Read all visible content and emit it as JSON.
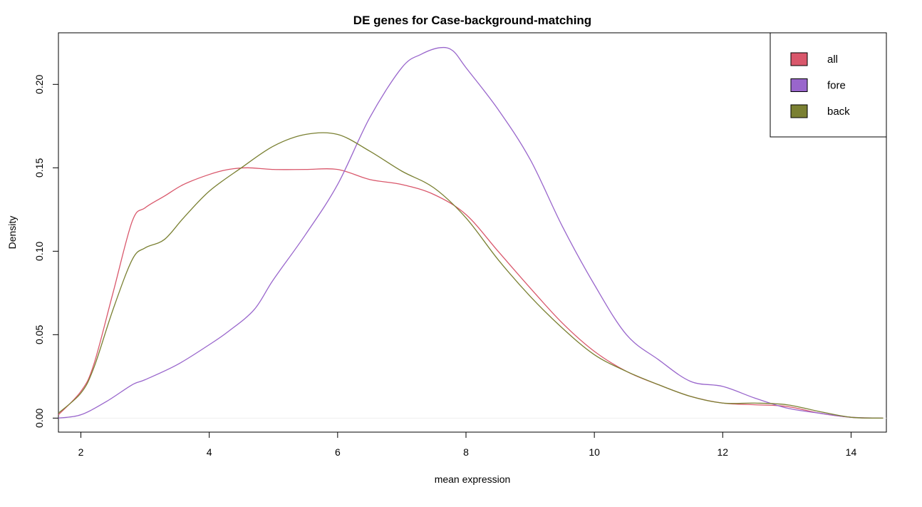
{
  "chart_data": {
    "type": "line",
    "title": "DE genes for Case-background-matching",
    "xlabel": "mean expression",
    "ylabel": "Density",
    "xlim": [
      1.65,
      14.55
    ],
    "ylim": [
      -0.0084,
      0.2309
    ],
    "xticks": [
      2,
      4,
      6,
      8,
      10,
      12,
      14
    ],
    "xtick_labels": [
      "2",
      "4",
      "6",
      "8",
      "10",
      "12",
      "14"
    ],
    "yticks": [
      0.0,
      0.05,
      0.1,
      0.15,
      0.2
    ],
    "ytick_labels": [
      "0.00",
      "0.05",
      "0.10",
      "0.15",
      "0.20"
    ],
    "grid": false,
    "legend_position": "top-right",
    "series": [
      {
        "name": "all",
        "color": "#d9576b",
        "x": [
          1.65,
          2.0,
          2.2,
          2.5,
          2.8,
          3.0,
          3.3,
          3.6,
          4.0,
          4.3,
          4.6,
          5.0,
          5.5,
          6.0,
          6.5,
          7.0,
          7.5,
          8.0,
          8.5,
          9.0,
          9.5,
          10.0,
          10.5,
          11.0,
          11.5,
          12.0,
          12.5,
          13.0,
          13.5,
          14.0,
          14.5
        ],
        "y": [
          0.002,
          0.016,
          0.032,
          0.075,
          0.118,
          0.126,
          0.133,
          0.14,
          0.146,
          0.149,
          0.15,
          0.149,
          0.149,
          0.149,
          0.143,
          0.14,
          0.134,
          0.122,
          0.1,
          0.078,
          0.057,
          0.04,
          0.028,
          0.02,
          0.013,
          0.009,
          0.008,
          0.007,
          0.003,
          0.0005,
          0.0
        ]
      },
      {
        "name": "fore",
        "color": "#9966cc",
        "x": [
          1.65,
          2.0,
          2.4,
          2.8,
          3.0,
          3.5,
          4.0,
          4.3,
          4.7,
          5.0,
          5.5,
          6.0,
          6.5,
          7.0,
          7.3,
          7.6,
          7.8,
          8.0,
          8.5,
          9.0,
          9.5,
          10.0,
          10.5,
          11.0,
          11.5,
          12.0,
          12.5,
          13.0,
          13.5,
          14.0,
          14.5
        ],
        "y": [
          0.0,
          0.002,
          0.01,
          0.02,
          0.023,
          0.032,
          0.044,
          0.052,
          0.065,
          0.083,
          0.11,
          0.14,
          0.18,
          0.21,
          0.218,
          0.222,
          0.22,
          0.21,
          0.185,
          0.155,
          0.115,
          0.08,
          0.05,
          0.035,
          0.022,
          0.019,
          0.012,
          0.006,
          0.003,
          0.0005,
          0.0
        ]
      },
      {
        "name": "back",
        "color": "#7a8032",
        "x": [
          1.65,
          2.0,
          2.2,
          2.5,
          2.8,
          3.0,
          3.3,
          3.6,
          4.0,
          4.5,
          5.0,
          5.5,
          6.0,
          6.5,
          7.0,
          7.5,
          8.0,
          8.5,
          9.0,
          9.5,
          10.0,
          10.5,
          11.0,
          11.5,
          12.0,
          12.5,
          13.0,
          13.5,
          14.0,
          14.5
        ],
        "y": [
          0.003,
          0.015,
          0.03,
          0.065,
          0.095,
          0.102,
          0.107,
          0.12,
          0.136,
          0.15,
          0.163,
          0.17,
          0.17,
          0.16,
          0.148,
          0.138,
          0.12,
          0.095,
          0.073,
          0.054,
          0.038,
          0.028,
          0.02,
          0.013,
          0.009,
          0.009,
          0.008,
          0.004,
          0.0005,
          0.0
        ]
      }
    ]
  }
}
